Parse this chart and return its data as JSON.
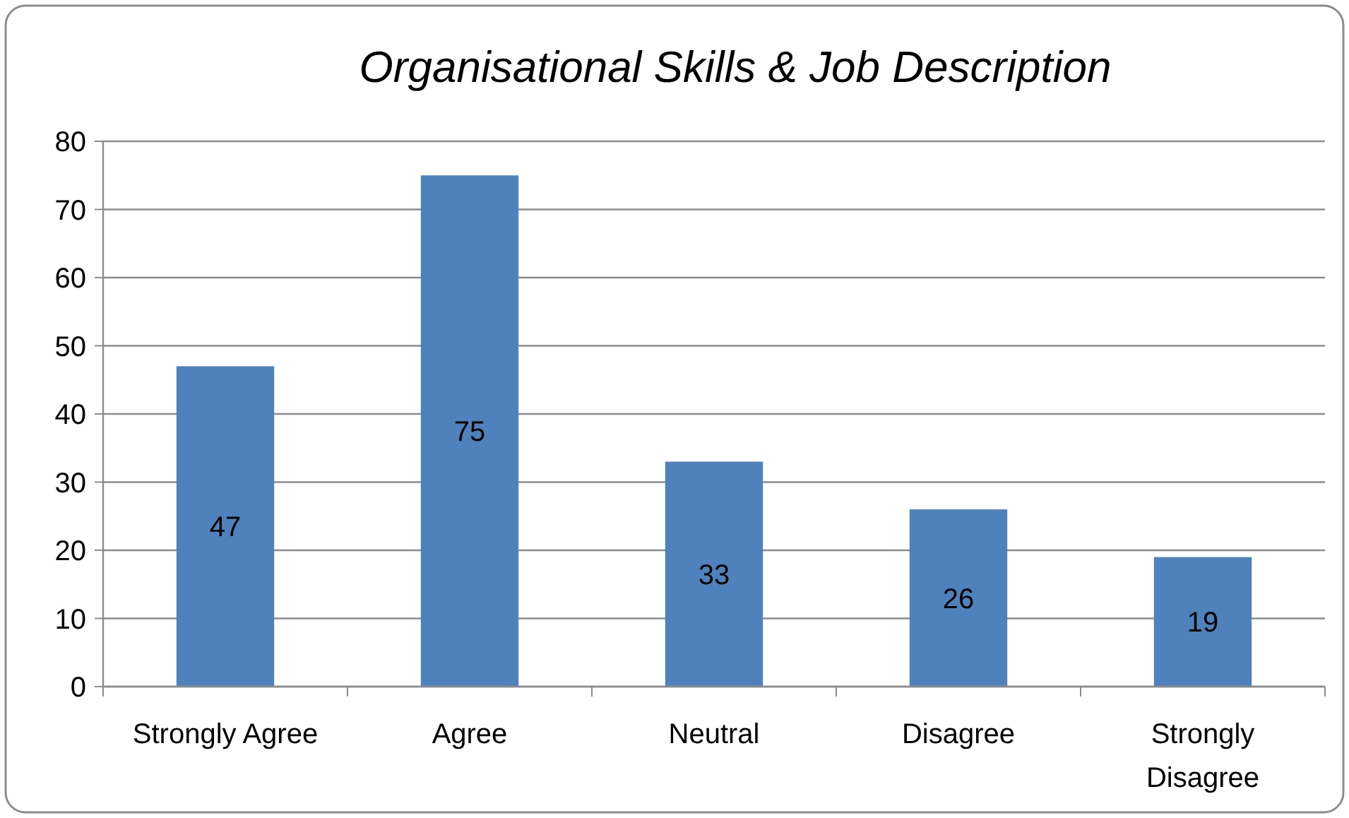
{
  "chart_data": {
    "type": "bar",
    "title": "Organisational Skills & Job Description",
    "categories": [
      "Strongly Agree",
      "Agree",
      "Neutral",
      "Disagree",
      "Strongly Disagree"
    ],
    "values": [
      47,
      75,
      33,
      26,
      19
    ],
    "color": "#4f81bd",
    "ylim": [
      0,
      80
    ],
    "yticks": [
      0,
      10,
      20,
      30,
      40,
      50,
      60,
      70,
      80
    ],
    "grid": "y",
    "data_labels": true
  }
}
